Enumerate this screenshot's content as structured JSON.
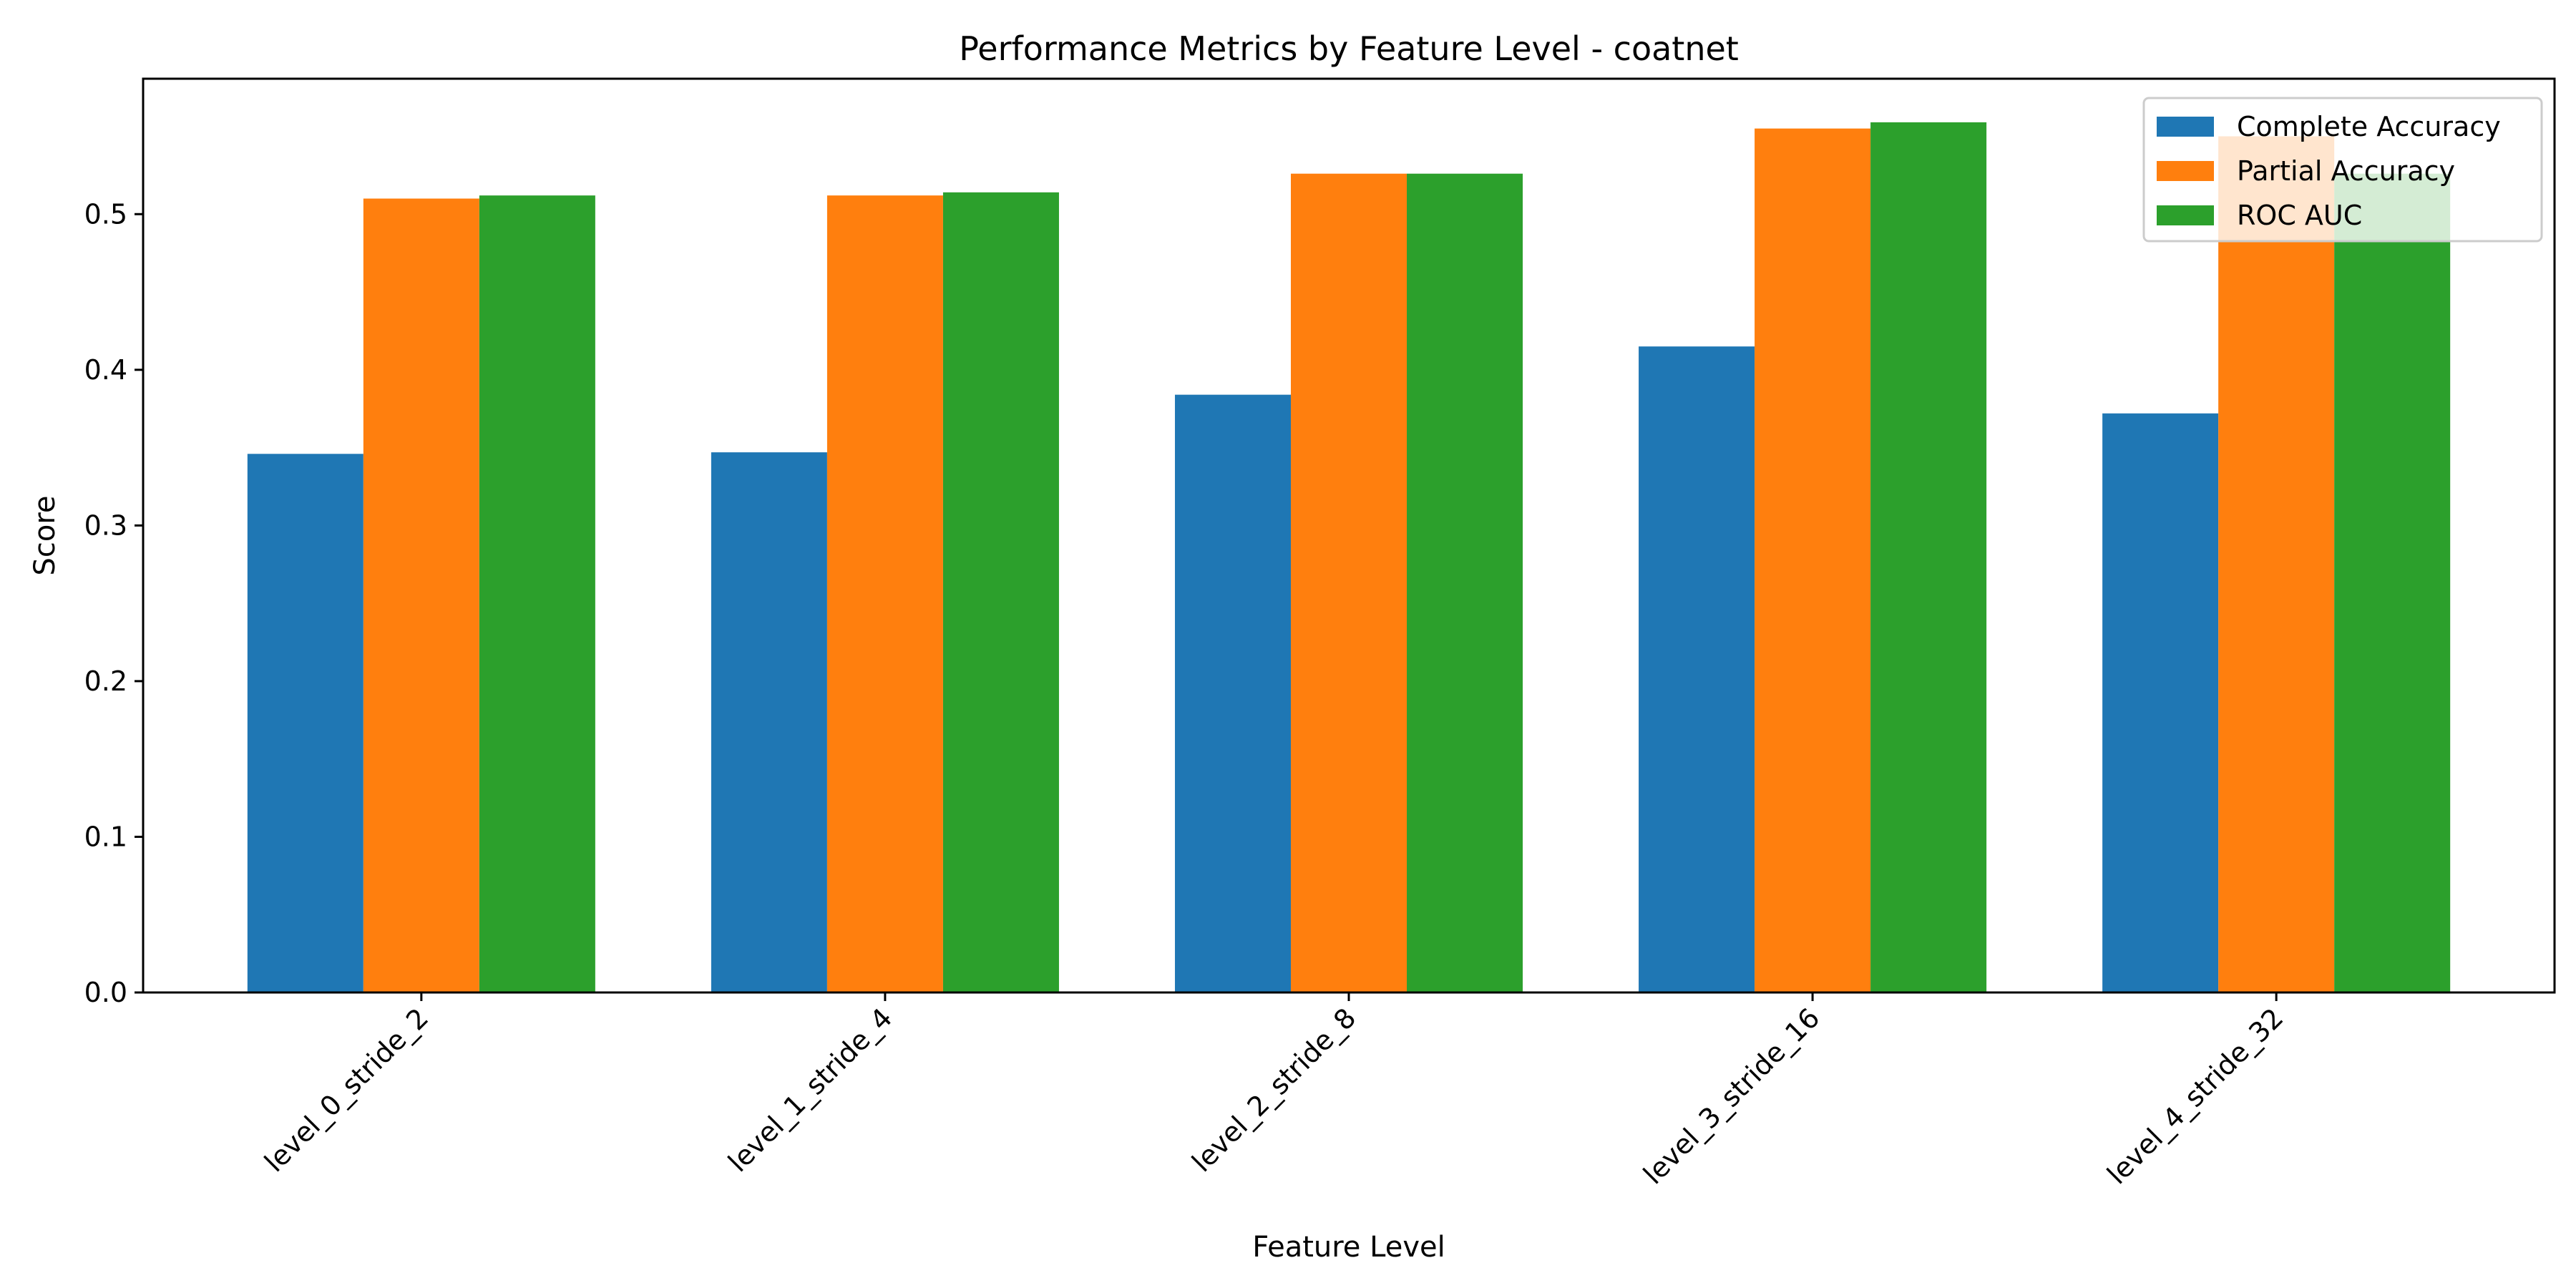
{
  "chart_data": {
    "type": "bar",
    "title": "Performance Metrics by Feature Level - coatnet",
    "xlabel": "Feature Level",
    "ylabel": "Score",
    "categories": [
      "level_0_stride_2",
      "level_1_stride_4",
      "level_2_stride_8",
      "level_3_stride_16",
      "level_4_stride_32"
    ],
    "series": [
      {
        "name": "Complete Accuracy",
        "color": "#1f77b4",
        "values": [
          0.346,
          0.347,
          0.384,
          0.415,
          0.372
        ]
      },
      {
        "name": "Partial Accuracy",
        "color": "#ff7f0e",
        "values": [
          0.51,
          0.512,
          0.526,
          0.555,
          0.55
        ]
      },
      {
        "name": "ROC AUC",
        "color": "#2ca02c",
        "values": [
          0.512,
          0.514,
          0.526,
          0.559,
          0.526
        ]
      }
    ],
    "ylim": [
      0,
      0.587
    ],
    "yticks": [
      "0.0",
      "0.1",
      "0.2",
      "0.3",
      "0.4",
      "0.5"
    ],
    "grid": false,
    "legend_position": "top-right"
  }
}
